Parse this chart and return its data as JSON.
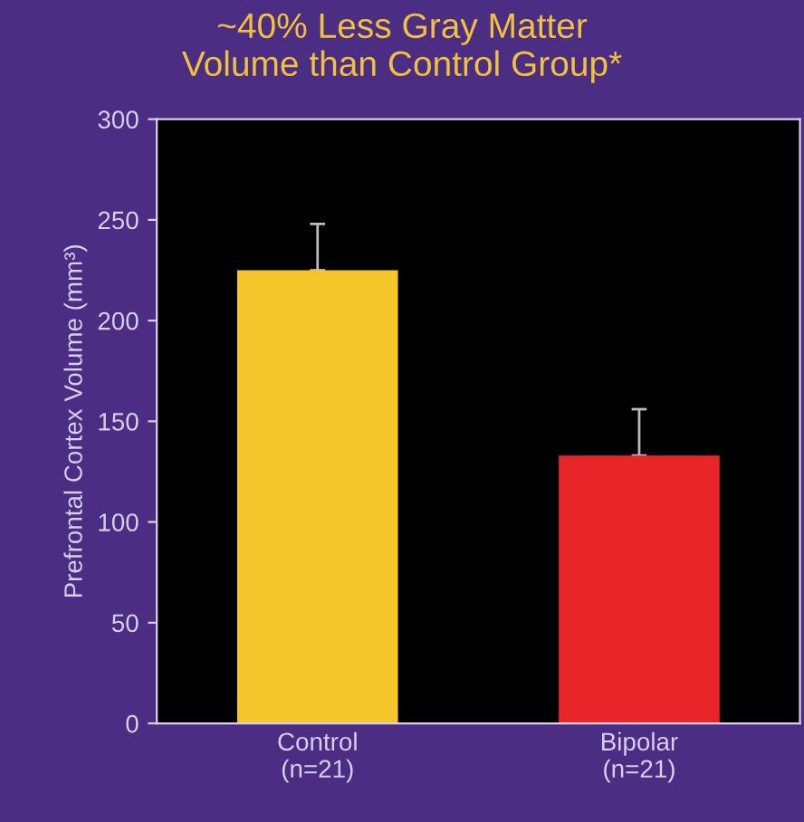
{
  "chart_data": {
    "type": "bar",
    "title": "~40% Less Gray Matter\nVolume than Control Group*",
    "categories": [
      "Control\n(n=21)",
      "Bipolar\n(n=21)"
    ],
    "values": [
      225,
      133
    ],
    "colors": [
      "#f5c62a",
      "#e8262a"
    ],
    "errors": [
      [
        225,
        248
      ],
      [
        133,
        156
      ]
    ],
    "ylabel": "Prefrontal Cortex Volume (mm³)",
    "ylim": [
      0,
      300
    ],
    "yticks": [
      0,
      50,
      100,
      150,
      200,
      250,
      300
    ],
    "grid": false,
    "legend": false
  }
}
